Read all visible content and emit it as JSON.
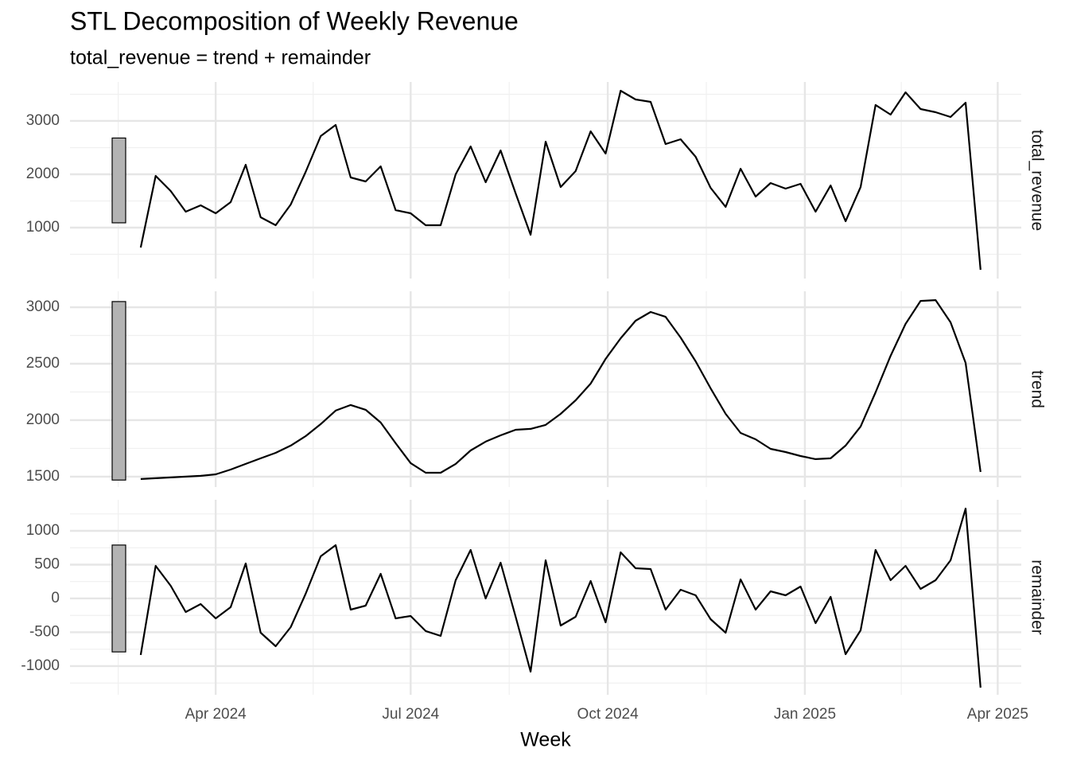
{
  "chart_data": {
    "type": "line",
    "title": "STL Decomposition of Weekly Revenue",
    "subtitle": "total_revenue = trend + remainder",
    "x_label": "Week",
    "color": "#000000",
    "grid": true,
    "x": [
      "2024-02-26",
      "2024-03-04",
      "2024-03-11",
      "2024-03-18",
      "2024-03-25",
      "2024-04-01",
      "2024-04-08",
      "2024-04-15",
      "2024-04-22",
      "2024-04-29",
      "2024-05-06",
      "2024-05-13",
      "2024-05-20",
      "2024-05-27",
      "2024-06-03",
      "2024-06-10",
      "2024-06-17",
      "2024-06-24",
      "2024-07-01",
      "2024-07-08",
      "2024-07-15",
      "2024-07-22",
      "2024-07-29",
      "2024-08-05",
      "2024-08-12",
      "2024-08-19",
      "2024-08-26",
      "2024-09-02",
      "2024-09-09",
      "2024-09-16",
      "2024-09-23",
      "2024-09-30",
      "2024-10-07",
      "2024-10-14",
      "2024-10-21",
      "2024-10-28",
      "2024-11-04",
      "2024-11-11",
      "2024-11-18",
      "2024-11-25",
      "2024-12-02",
      "2024-12-09",
      "2024-12-16",
      "2024-12-23",
      "2024-12-30",
      "2025-01-06",
      "2025-01-13",
      "2025-01-20",
      "2025-01-27",
      "2025-02-03",
      "2025-02-10",
      "2025-02-17",
      "2025-02-24",
      "2025-03-03",
      "2025-03-10",
      "2025-03-17",
      "2025-03-24"
    ],
    "xlim": [
      "2024-01-24",
      "2025-04-12"
    ],
    "xticks": [
      {
        "value": "2024-04-01",
        "label": "Apr 2024"
      },
      {
        "value": "2024-07-01",
        "label": "Jul 2024"
      },
      {
        "value": "2024-10-01",
        "label": "Oct 2024"
      },
      {
        "value": "2025-01-01",
        "label": "Jan 2025"
      },
      {
        "value": "2025-04-01",
        "label": "Apr 2025"
      }
    ],
    "facets": [
      {
        "name": "total_revenue",
        "values": [
          627,
          1970,
          1687,
          1299,
          1418,
          1269,
          1478,
          2179,
          1194,
          1045,
          1433,
          2045,
          2716,
          2925,
          1940,
          1866,
          2149,
          1328,
          1269,
          1045,
          1045,
          2000,
          2522,
          1851,
          2448,
          1642,
          866,
          2612,
          1761,
          2060,
          2806,
          2388,
          3567,
          3403,
          3358,
          2567,
          2657,
          2328,
          1746,
          1388,
          2104,
          1582,
          1836,
          1731,
          1821,
          1299,
          1791,
          1119,
          1761,
          3299,
          3119,
          3537,
          3224,
          3164,
          3075,
          3343,
          209
        ],
        "ylim": [
          45,
          3731
        ],
        "yticks": [
          1000,
          2000,
          3000
        ],
        "range_bar": [
          1090,
          2680
        ]
      },
      {
        "name": "trend",
        "values": [
          1479,
          1486,
          1493,
          1500,
          1507,
          1521,
          1563,
          1613,
          1662,
          1711,
          1775,
          1859,
          1965,
          2085,
          2134,
          2092,
          1979,
          1796,
          1620,
          1535,
          1535,
          1613,
          1732,
          1810,
          1866,
          1915,
          1923,
          1958,
          2056,
          2176,
          2324,
          2542,
          2725,
          2880,
          2958,
          2915,
          2732,
          2521,
          2282,
          2056,
          1887,
          1831,
          1746,
          1718,
          1683,
          1655,
          1662,
          1775,
          1944,
          2246,
          2570,
          2852,
          3056,
          3063,
          2866,
          2507,
          1542
        ],
        "ylim": [
          1408,
          3141
        ],
        "yticks": [
          1500,
          2000,
          2500,
          3000
        ],
        "range_bar": [
          1470,
          3050
        ]
      },
      {
        "name": "remainder",
        "values": [
          -835,
          482,
          188,
          -200,
          -82,
          -294,
          -129,
          518,
          -506,
          -706,
          -424,
          71,
          624,
          788,
          -165,
          -106,
          365,
          -294,
          -259,
          -482,
          -553,
          271,
          718,
          0,
          529,
          -271,
          -1082,
          565,
          -400,
          -271,
          259,
          -353,
          682,
          447,
          435,
          -165,
          129,
          47,
          -306,
          -506,
          282,
          -165,
          106,
          47,
          176,
          -365,
          24,
          -824,
          -471,
          718,
          271,
          482,
          141,
          271,
          565,
          1329,
          -1318
        ],
        "ylim": [
          -1424,
          1459
        ],
        "yticks": [
          -1000,
          -500,
          0,
          500,
          1000
        ],
        "range_bar": [
          -790,
          790
        ]
      }
    ]
  }
}
